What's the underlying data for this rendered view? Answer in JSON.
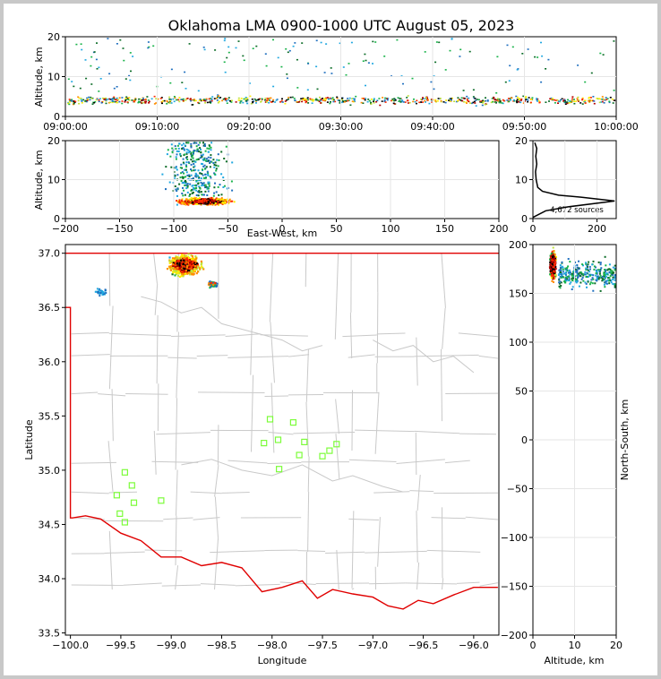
{
  "title": "Oklahoma LMA 0900-1000 UTC August 05, 2023",
  "colors": [
    "#1f6fbf",
    "#21a8e0",
    "#19b34a",
    "#0a6b26",
    "#bfe23a",
    "#ffee00",
    "#ff8c00",
    "#ff2a00",
    "#b30000",
    "#000000"
  ],
  "chart_data": [
    {
      "id": "altitude-time",
      "type": "scatter",
      "ylabel": "Altitude, km",
      "ylim": [
        0,
        20
      ],
      "yticks": [
        "0",
        "10",
        "20"
      ],
      "xlim": [
        "09:00:00",
        "10:00:00"
      ],
      "xticks": [
        "09:00:00",
        "09:10:00",
        "09:20:00",
        "09:30:00",
        "09:40:00",
        "09:50:00",
        "10:00:00"
      ],
      "core_altitude_km": [
        3,
        7
      ]
    },
    {
      "id": "altitude-eastwest",
      "type": "scatter",
      "xlabel": "East-West, km",
      "ylabel": "Altitude, km",
      "xlim": [
        -200,
        200
      ],
      "ylim": [
        0,
        20
      ],
      "xticks": [
        "−200",
        "−150",
        "−100",
        "−50",
        "0",
        "50",
        "100",
        "150",
        "200"
      ],
      "yticks": [
        "0",
        "10",
        "20"
      ],
      "source_x_range_km": [
        -120,
        -25
      ]
    },
    {
      "id": "altitude-histogram",
      "type": "line",
      "annotation": "4,672 sources",
      "xlim": [
        0,
        260
      ],
      "ylim": [
        0,
        20
      ],
      "xticks": [
        "0",
        "200"
      ],
      "yticks": [
        "0",
        "10",
        "20"
      ],
      "profile": [
        [
          0,
          0.3
        ],
        [
          40,
          2
        ],
        [
          110,
          3
        ],
        [
          255,
          4.5
        ],
        [
          150,
          5.5
        ],
        [
          80,
          6
        ],
        [
          30,
          7
        ],
        [
          15,
          8
        ],
        [
          10,
          10
        ],
        [
          8,
          12
        ],
        [
          12,
          14
        ],
        [
          9,
          16
        ],
        [
          12,
          18
        ],
        [
          6,
          19.5
        ]
      ]
    },
    {
      "id": "plan-view-map",
      "type": "scatter",
      "xlabel": "Longitude",
      "ylabel": "Latitude",
      "xlim": [
        -100.05,
        -95.75
      ],
      "ylim": [
        33.48,
        37.08
      ],
      "xticks": [
        "−100.0",
        "−99.5",
        "−99.0",
        "−98.5",
        "−98.0",
        "−97.5",
        "−97.0",
        "−96.5",
        "−96.0"
      ],
      "yticks": [
        "33.5",
        "34.0",
        "34.5",
        "35.0",
        "35.5",
        "36.0",
        "36.5",
        "37.0"
      ],
      "stations": [
        [
          -98.02,
          35.47
        ],
        [
          -97.79,
          35.44
        ],
        [
          -98.08,
          35.25
        ],
        [
          -97.94,
          35.28
        ],
        [
          -97.68,
          35.26
        ],
        [
          -97.36,
          35.24
        ],
        [
          -97.73,
          35.14
        ],
        [
          -97.5,
          35.13
        ],
        [
          -97.43,
          35.18
        ],
        [
          -97.93,
          35.01
        ],
        [
          -99.46,
          34.98
        ],
        [
          -99.39,
          34.86
        ],
        [
          -99.54,
          34.77
        ],
        [
          -99.37,
          34.7
        ],
        [
          -99.1,
          34.72
        ],
        [
          -99.51,
          34.6
        ],
        [
          -99.46,
          34.52
        ]
      ]
    },
    {
      "id": "altitude-northsouth",
      "type": "scatter",
      "xlabel": "Altitude, km",
      "ylabel": "North-South, km",
      "xlim": [
        0,
        20
      ],
      "ylim": [
        -200,
        200
      ],
      "xticks": [
        "0",
        "10",
        "20"
      ],
      "yticks": [
        "200",
        "150",
        "100",
        "50",
        "0",
        "−50",
        "−100",
        "−150",
        "−200"
      ]
    }
  ]
}
